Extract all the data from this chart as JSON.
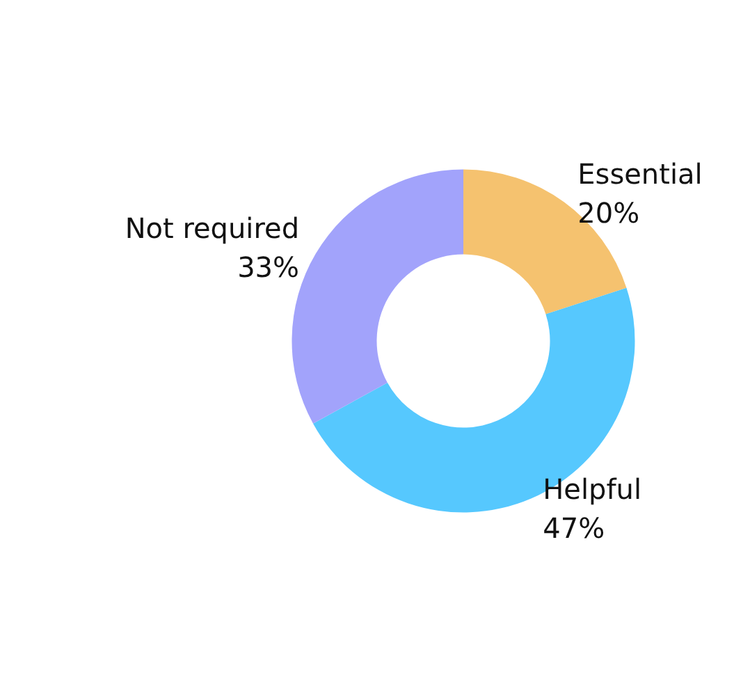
{
  "chart_data": {
    "type": "donut",
    "categories": [
      "Essential",
      "Helpful",
      "Not required"
    ],
    "values": [
      20,
      47,
      33
    ],
    "value_labels": [
      "20%",
      "47%",
      "33%"
    ],
    "colors": [
      "#f5c26f",
      "#56c8fe",
      "#a2a3fb"
    ],
    "legend": false
  }
}
